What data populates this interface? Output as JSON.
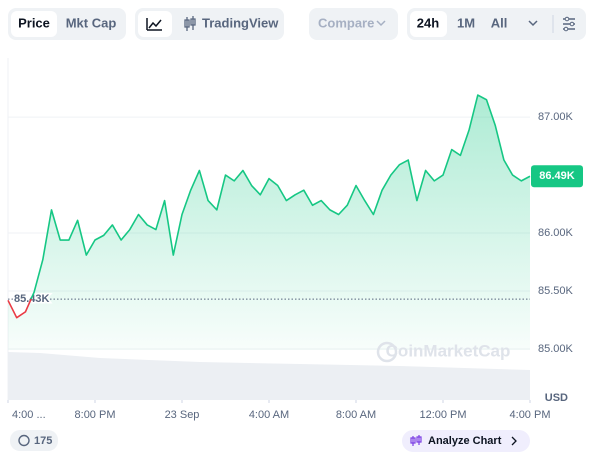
{
  "toolbar": {
    "price": "Price",
    "mkt_cap": "Mkt Cap",
    "tradingview": "TradingView",
    "compare": "Compare",
    "range_24h": "24h",
    "range_1m": "1M",
    "range_all": "All"
  },
  "watermark": "CoinMarketCap",
  "footer": {
    "badge_count": "175",
    "analyze": "Analyze Chart"
  },
  "chart_data": {
    "type": "line",
    "y_label": "USD",
    "xlim": [
      0,
      24
    ],
    "xticks": [
      {
        "value": 0,
        "label": "4:00 ..."
      },
      {
        "value": 4,
        "label": "8:00 PM"
      },
      {
        "value": 8,
        "label": "23 Sep"
      },
      {
        "value": 12,
        "label": "4:00 AM"
      },
      {
        "value": 16,
        "label": "8:00 AM"
      },
      {
        "value": 20,
        "label": "12:00 PM"
      },
      {
        "value": 24,
        "label": "4:00 PM"
      }
    ],
    "ylim": [
      84560,
      87510
    ],
    "yticks": [
      {
        "value": 85000,
        "label": "85.00K"
      },
      {
        "value": 85500,
        "label": "85.50K"
      },
      {
        "value": 86000,
        "label": "86.00K"
      },
      {
        "value": 87000,
        "label": "87.00K"
      }
    ],
    "grid": true,
    "reference": {
      "value": 85430,
      "label": "85.43K"
    },
    "current": {
      "value": 86490,
      "label": "86.49K"
    },
    "up_color": "#16c784",
    "down_color": "#ea3943",
    "series": [
      {
        "name": "Price",
        "x": [
          0,
          0.4,
          0.8,
          1.2,
          1.6,
          2,
          2.4,
          2.8,
          3.2,
          3.6,
          4,
          4.4,
          4.8,
          5.2,
          5.6,
          6,
          6.4,
          6.8,
          7.2,
          7.6,
          8,
          8.4,
          8.8,
          9.2,
          9.6,
          10,
          10.4,
          10.8,
          11.2,
          11.6,
          12,
          12.4,
          12.8,
          13.2,
          13.6,
          14,
          14.4,
          14.8,
          15.2,
          15.6,
          16,
          16.4,
          16.8,
          17.2,
          17.6,
          18,
          18.4,
          18.8,
          19.2,
          19.6,
          20,
          20.4,
          20.8,
          21.2,
          21.6,
          22,
          22.4,
          22.8,
          23.2,
          23.6,
          24
        ],
        "values": [
          85420,
          85270,
          85320,
          85490,
          85770,
          86200,
          85940,
          85940,
          86110,
          85810,
          85940,
          85980,
          86070,
          85940,
          86030,
          86160,
          86070,
          86030,
          86280,
          85810,
          86160,
          86370,
          86540,
          86280,
          86200,
          86500,
          86450,
          86540,
          86410,
          86330,
          86470,
          86410,
          86280,
          86330,
          86370,
          86240,
          86280,
          86200,
          86160,
          86240,
          86410,
          86280,
          86160,
          86370,
          86500,
          86590,
          86630,
          86280,
          86540,
          86450,
          86500,
          86720,
          86670,
          86890,
          87190,
          87150,
          86930,
          86630,
          86500,
          86450,
          86490
        ]
      }
    ]
  }
}
